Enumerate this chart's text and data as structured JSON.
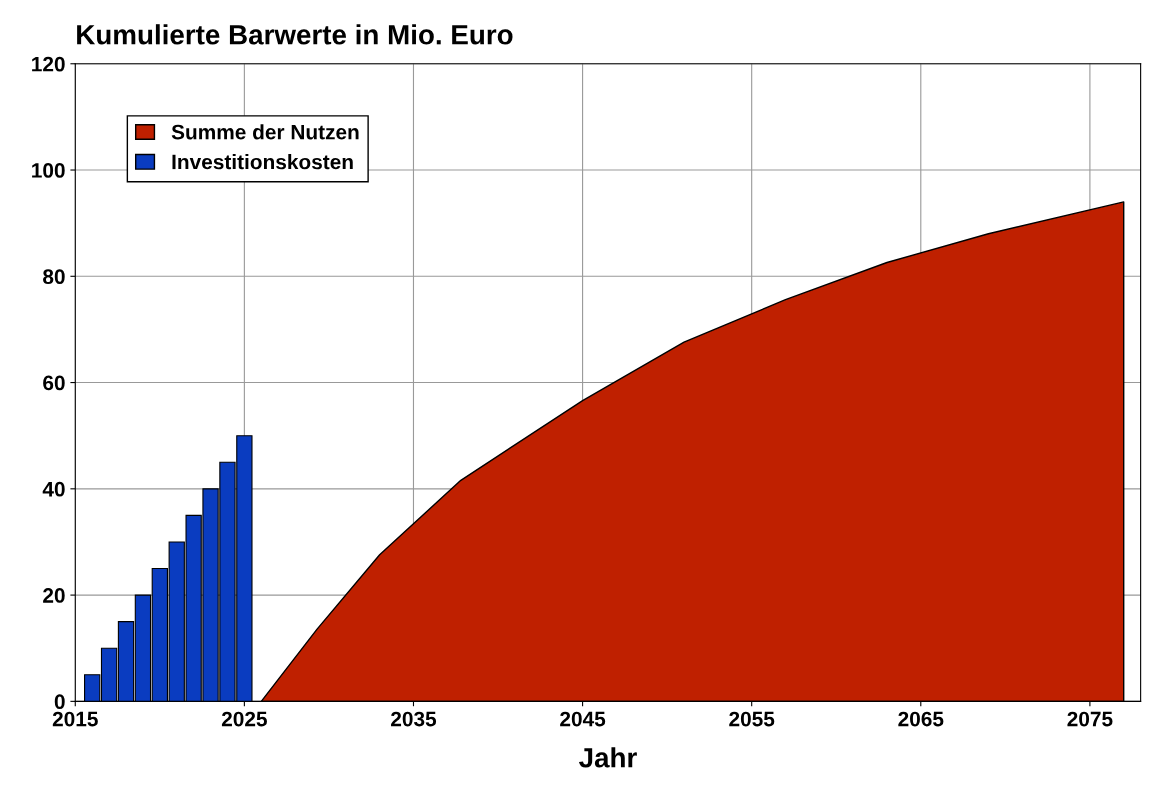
{
  "chart_data": {
    "type": "bar",
    "title": "Kumulierte Barwerte in Mio. Euro",
    "xlabel": "Jahr",
    "xlim": [
      2015,
      2078
    ],
    "xticks": [
      2015,
      2025,
      2035,
      2045,
      2055,
      2065,
      2075
    ],
    "ylim": [
      0,
      120
    ],
    "yticks": [
      0,
      20,
      40,
      60,
      80,
      100,
      120
    ],
    "grid": true,
    "legend": "top left",
    "series": [
      {
        "name": "Summe der Nutzen",
        "type": "area",
        "color": "#bf2000",
        "x": [
          2026,
          2029.3,
          2033,
          2037.8,
          2045,
          2051,
          2057,
          2063,
          2069,
          2077
        ],
        "values": [
          0,
          13.6,
          27.6,
          41.6,
          56.6,
          67.6,
          75.6,
          82.6,
          88,
          94
        ]
      },
      {
        "name": "Investitionskosten",
        "color": "#0a3cc0",
        "x": [
          2016,
          2017,
          2018,
          2019,
          2020,
          2021,
          2022,
          2023,
          2024,
          2025
        ],
        "values": [
          5,
          10,
          15,
          20,
          25,
          30,
          35,
          40,
          45,
          50
        ]
      }
    ]
  }
}
